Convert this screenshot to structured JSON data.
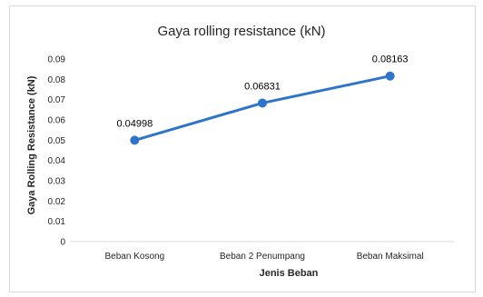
{
  "chart_data": {
    "type": "line",
    "title": "Gaya rolling resistance (kN)",
    "xlabel": "Jenis Beban",
    "ylabel": "Gaya Rolling Resistance (kN)",
    "categories": [
      "Beban Kosong",
      "Beban 2 Penumpang",
      "Beban Maksimal"
    ],
    "series": [
      {
        "values": [
          0.04998,
          0.06831,
          0.08163
        ],
        "data_labels": [
          "0.04998",
          "0.06831",
          "0.08163"
        ]
      }
    ],
    "yticks": [
      "0",
      "0.01",
      "0.02",
      "0.03",
      "0.04",
      "0.05",
      "0.06",
      "0.07",
      "0.08",
      "0.09"
    ],
    "ylim": [
      0,
      0.09
    ],
    "grid": false,
    "legend": "none",
    "line_color": "#2e75c9"
  }
}
